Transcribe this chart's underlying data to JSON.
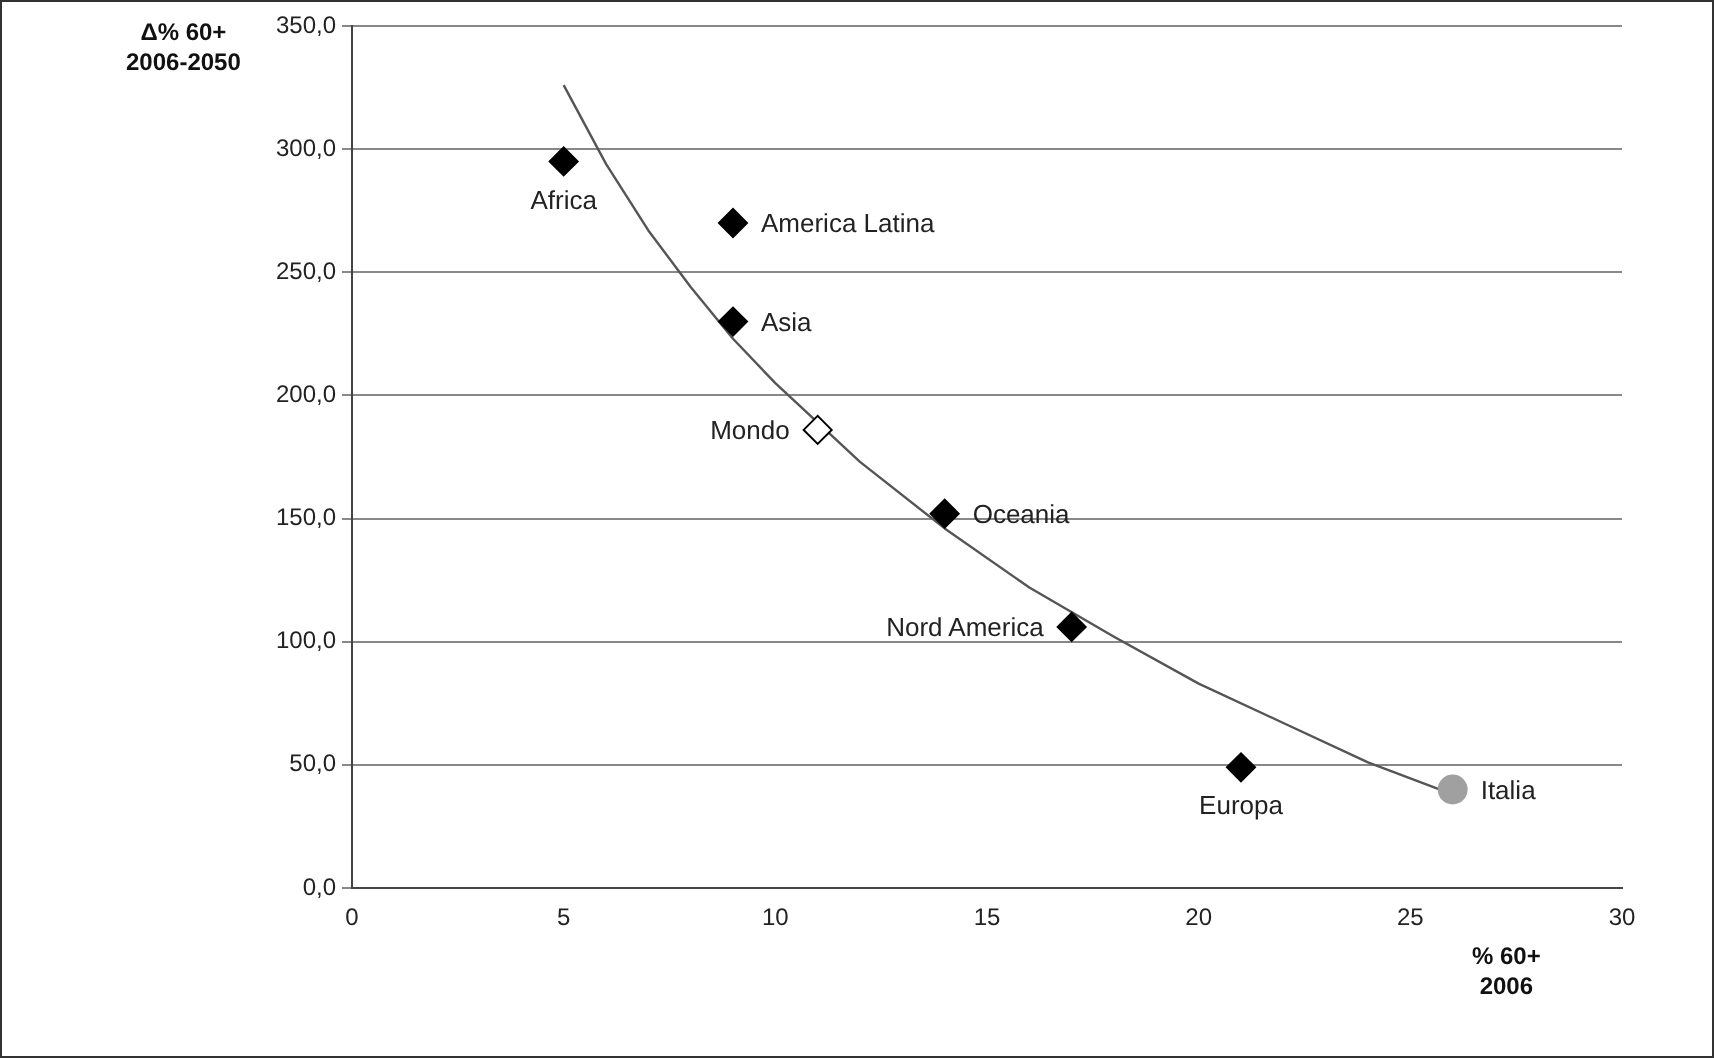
{
  "chart_data": {
    "type": "scatter",
    "xlabel": "% 60+\n2006",
    "ylabel": "Δ% 60+\n2006-2050",
    "xlim": [
      0,
      30
    ],
    "xticks": [
      0,
      5,
      10,
      15,
      20,
      25,
      30
    ],
    "ylim": [
      0,
      350
    ],
    "yticks": [
      {
        "value": 0,
        "label": "0,0"
      },
      {
        "value": 50,
        "label": "50,0"
      },
      {
        "value": 100,
        "label": "100,0"
      },
      {
        "value": 150,
        "label": "150,0"
      },
      {
        "value": 200,
        "label": "200,0"
      },
      {
        "value": 250,
        "label": "250,0"
      },
      {
        "value": 300,
        "label": "300,0"
      },
      {
        "value": 350,
        "label": "350,0"
      }
    ],
    "grid": "y",
    "legend": false,
    "marker": "diamond",
    "series": [
      {
        "type": "line",
        "color": "#555555",
        "marker": "none",
        "x": [
          5,
          6,
          7,
          8,
          9,
          10,
          12,
          14,
          16,
          18,
          20,
          22,
          24,
          26
        ],
        "values": [
          326,
          294,
          267,
          244,
          223,
          205,
          173,
          146,
          122,
          102,
          83,
          67,
          51,
          38
        ]
      },
      {
        "name": "Africa",
        "color": "#000000",
        "x": [
          5
        ],
        "values": [
          295
        ]
      },
      {
        "name": "America Latina",
        "color": "#000000",
        "x": [
          9
        ],
        "values": [
          270
        ]
      },
      {
        "name": "Asia",
        "color": "#000000",
        "x": [
          9
        ],
        "values": [
          230
        ]
      },
      {
        "name": "Mondo",
        "color": "#ffffff",
        "x": [
          11
        ],
        "values": [
          186
        ]
      },
      {
        "name": "Oceania",
        "color": "#000000",
        "x": [
          14
        ],
        "values": [
          152
        ]
      },
      {
        "name": "Nord America",
        "color": "#000000",
        "x": [
          17
        ],
        "values": [
          106
        ]
      },
      {
        "name": "Europa",
        "color": "#000000",
        "x": [
          21
        ],
        "values": [
          49
        ]
      },
      {
        "name": "Italia",
        "color": "#a0a0a0",
        "marker": "circle",
        "x": [
          26
        ],
        "values": [
          40
        ]
      }
    ]
  }
}
